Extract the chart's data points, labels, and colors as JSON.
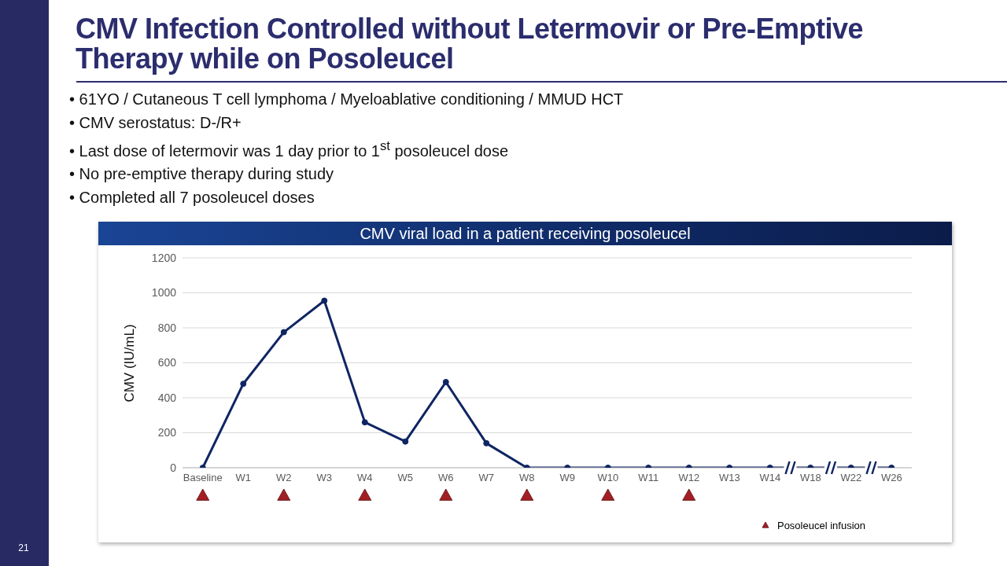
{
  "chart_data": {
    "type": "line",
    "title": "CMV Infection Controlled without Letermovir or Pre-Emptive Therapy while on Posoleucel",
    "subtitle": "CMV viral load in a patient receiving posoleucel",
    "ylabel": "CMV (IU/mL)",
    "categories": [
      "Baseline",
      "W1",
      "W2",
      "W3",
      "W4",
      "W5",
      "W6",
      "W7",
      "W8",
      "W9",
      "W10",
      "W11",
      "W12",
      "W13",
      "W14",
      "W18",
      "W22",
      "W26"
    ],
    "series": [
      {
        "type": "line",
        "color": "#0f2563",
        "values": [
          0,
          480,
          775,
          955,
          260,
          150,
          490,
          140,
          0,
          0,
          0,
          0,
          0,
          0,
          0,
          0,
          0,
          0
        ]
      },
      {
        "type": "scatter",
        "name": "Posoleucel infusion",
        "color": "#a31f24",
        "marker": "triangle",
        "x": [
          "Baseline",
          "W2",
          "W4",
          "W6",
          "W8",
          "W10",
          "W12"
        ],
        "values": [
          null,
          null,
          null,
          null,
          null,
          null,
          null
        ]
      }
    ],
    "ylim": [
      0,
      1200
    ],
    "yticks": [
      0,
      200,
      400,
      600,
      800,
      1000,
      1200
    ],
    "grid": "y",
    "marker": "circle",
    "line_style": "solid",
    "legend": "bottom right",
    "annotations": [
      "• 61YO / Cutaneous T cell lymphoma / Myeloablative conditioning / MMUD HCT",
      "• CMV serostatus: D-/R+",
      "• Last dose of letermovir was 1 day prior to 1$^{st}$ posoleucel dose",
      "• No pre-emptive therapy during study",
      "• Completed all 7 posoleucel doses",
      "21"
    ]
  }
}
